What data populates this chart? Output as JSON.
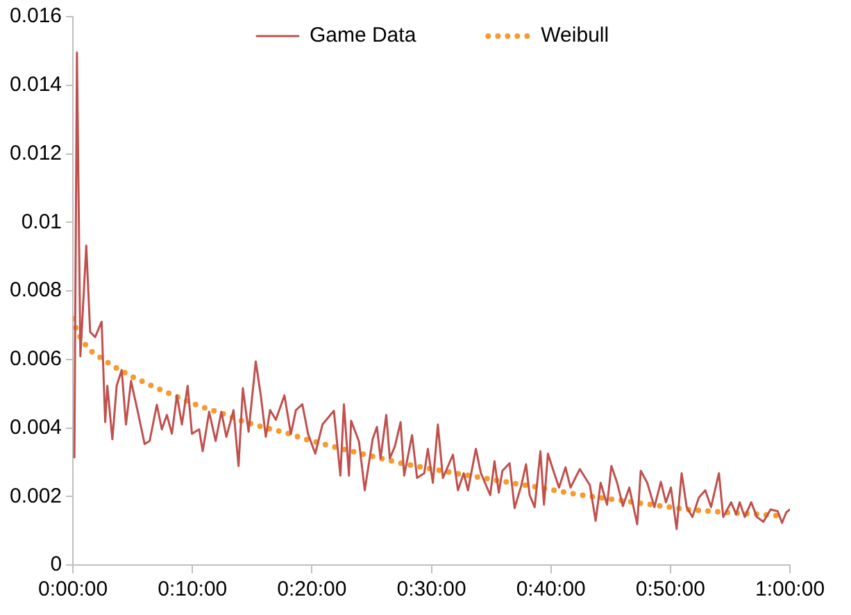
{
  "chart_data": {
    "type": "line",
    "xlim": [
      0,
      1
    ],
    "ylim": [
      0,
      0.016
    ],
    "xticks": [
      {
        "value": 0,
        "label": "0:00:00"
      },
      {
        "value": 0.16667,
        "label": "0:10:00"
      },
      {
        "value": 0.33333,
        "label": "0:20:00"
      },
      {
        "value": 0.5,
        "label": "0:30:00"
      },
      {
        "value": 0.66667,
        "label": "0:40:00"
      },
      {
        "value": 0.83333,
        "label": "0:50:00"
      },
      {
        "value": 1,
        "label": "1:00:00"
      }
    ],
    "yticks": [
      0,
      0.002,
      0.004,
      0.006,
      0.008,
      0.01,
      0.012,
      0.014,
      0.016
    ],
    "grid": false,
    "legend": "top",
    "marker": "none",
    "series": [
      {
        "name": "Game Data",
        "color": "#c0504d",
        "line_style": "solid",
        "x": [
          0.002,
          0.0056,
          0.0104,
          0.0186,
          0.024,
          0.031,
          0.04,
          0.045,
          0.048,
          0.055,
          0.061,
          0.068,
          0.074,
          0.081,
          0.09,
          0.1,
          0.107,
          0.117,
          0.124,
          0.131,
          0.138,
          0.145,
          0.152,
          0.16,
          0.166,
          0.176,
          0.181,
          0.19,
          0.199,
          0.207,
          0.214,
          0.224,
          0.231,
          0.237,
          0.245,
          0.255,
          0.262,
          0.269,
          0.275,
          0.283,
          0.295,
          0.304,
          0.311,
          0.32,
          0.328,
          0.338,
          0.348,
          0.364,
          0.373,
          0.378,
          0.385,
          0.388,
          0.399,
          0.407,
          0.418,
          0.424,
          0.429,
          0.437,
          0.442,
          0.449,
          0.457,
          0.462,
          0.473,
          0.48,
          0.49,
          0.495,
          0.502,
          0.509,
          0.516,
          0.53,
          0.537,
          0.545,
          0.551,
          0.562,
          0.569,
          0.582,
          0.588,
          0.594,
          0.599,
          0.609,
          0.616,
          0.625,
          0.632,
          0.637,
          0.644,
          0.652,
          0.657,
          0.6625,
          0.669,
          0.678,
          0.687,
          0.694,
          0.707,
          0.721,
          0.729,
          0.736,
          0.745,
          0.751,
          0.759,
          0.767,
          0.776,
          0.787,
          0.792,
          0.801,
          0.811,
          0.82,
          0.827,
          0.834,
          0.842,
          0.849,
          0.856,
          0.864,
          0.873,
          0.882,
          0.89,
          0.901,
          0.907,
          0.918,
          0.925,
          0.93,
          0.937,
          0.946,
          0.954,
          0.963,
          0.973,
          0.983,
          0.989,
          0.995,
          1
        ],
        "values": [
          0.00314,
          0.01495,
          0.00609,
          0.00932,
          0.0068,
          0.00665,
          0.0071,
          0.00417,
          0.00523,
          0.00367,
          0.00523,
          0.00569,
          0.0041,
          0.00537,
          0.00452,
          0.00353,
          0.00362,
          0.00468,
          0.00396,
          0.00438,
          0.00383,
          0.00495,
          0.0041,
          0.00523,
          0.00383,
          0.00396,
          0.00332,
          0.00447,
          0.00362,
          0.00447,
          0.00374,
          0.00452,
          0.00289,
          0.00516,
          0.00389,
          0.00594,
          0.00495,
          0.00374,
          0.00452,
          0.00424,
          0.00495,
          0.00382,
          0.00452,
          0.00469,
          0.00382,
          0.00325,
          0.0041,
          0.0045,
          0.00261,
          0.00469,
          0.00261,
          0.00421,
          0.0036,
          0.00218,
          0.00367,
          0.00403,
          0.00311,
          0.00438,
          0.00311,
          0.00346,
          0.00417,
          0.00261,
          0.00379,
          0.00254,
          0.00268,
          0.00339,
          0.0024,
          0.0041,
          0.00254,
          0.00322,
          0.00218,
          0.00268,
          0.00218,
          0.00339,
          0.00268,
          0.00204,
          0.00303,
          0.00211,
          0.00275,
          0.00297,
          0.00166,
          0.00229,
          0.00294,
          0.00204,
          0.00169,
          0.00332,
          0.00176,
          0.00325,
          0.00282,
          0.00226,
          0.00285,
          0.00226,
          0.0028,
          0.00233,
          0.00129,
          0.0024,
          0.00176,
          0.00289,
          0.0024,
          0.00172,
          0.00226,
          0.00119,
          0.00275,
          0.0024,
          0.00169,
          0.00243,
          0.00183,
          0.00226,
          0.00105,
          0.00268,
          0.00169,
          0.0014,
          0.00197,
          0.00218,
          0.00169,
          0.00268,
          0.0014,
          0.00183,
          0.00148,
          0.00183,
          0.0014,
          0.00183,
          0.0014,
          0.00126,
          0.00162,
          0.00157,
          0.00123,
          0.00154,
          0.00162
        ]
      },
      {
        "name": "Weibull",
        "color": "#f79a2e",
        "line_style": "dotted",
        "x": [
          0,
          0.0056,
          0.014,
          0.026,
          0.054,
          0.083,
          0.114,
          0.145,
          0.176,
          0.207,
          0.24,
          0.271,
          0.304,
          0.319,
          0.369,
          0.416,
          0.464,
          0.514,
          0.564,
          0.611,
          0.659,
          0.709,
          0.759,
          0.807,
          0.857,
          0.907,
          0.956,
          0.99
        ],
        "values": [
          0.00719,
          0.00682,
          0.00651,
          0.00623,
          0.00583,
          0.00549,
          0.00519,
          0.00491,
          0.00464,
          0.00443,
          0.00417,
          0.00399,
          0.00382,
          0.0037,
          0.00342,
          0.00318,
          0.00294,
          0.00275,
          0.00257,
          0.0024,
          0.00223,
          0.00204,
          0.0019,
          0.00176,
          0.00162,
          0.00154,
          0.00148,
          0.00143
        ]
      }
    ]
  }
}
